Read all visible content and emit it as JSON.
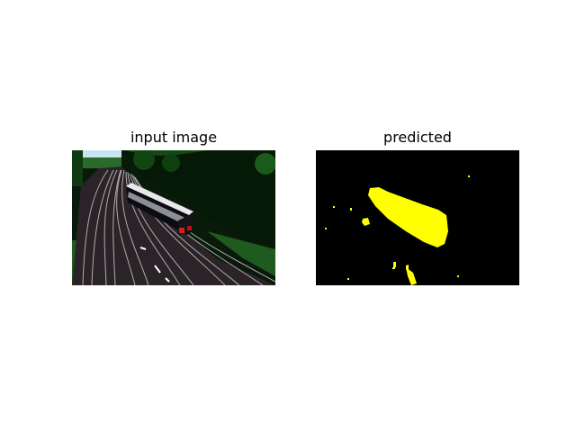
{
  "panels": [
    {
      "title": "input image",
      "content": "enhanced-contrast railway photo with train on tracks"
    },
    {
      "title": "predicted",
      "content": "segmentation mask",
      "mask_color": "#ffff00",
      "background_color": "#000000"
    }
  ],
  "colors": {
    "figure_bg": "#ffffff",
    "mask": "#ffff00",
    "mask_bg": "#000000"
  }
}
